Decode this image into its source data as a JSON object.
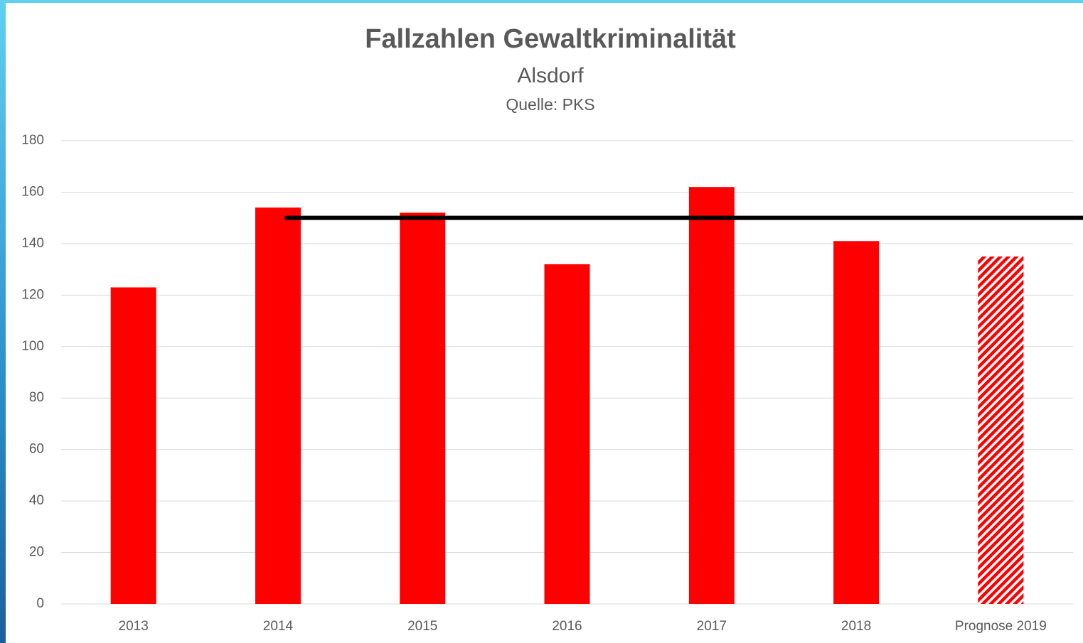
{
  "chart_data": {
    "type": "bar",
    "title": "Fallzahlen Gewaltkriminalität",
    "subtitle": "Alsdorf",
    "source": "Quelle: PKS",
    "categories": [
      "2013",
      "2014",
      "2015",
      "2016",
      "2017",
      "2018",
      "Prognose 2019"
    ],
    "values": [
      123,
      154,
      152,
      132,
      162,
      141,
      135
    ],
    "bar_styles": [
      "solid",
      "solid",
      "solid",
      "solid",
      "solid",
      "solid",
      "hatched"
    ],
    "color": "#ff0000",
    "reference_value": 150,
    "reference_color": "#000000",
    "ylim": [
      0,
      180
    ],
    "yticks": [
      0,
      20,
      40,
      60,
      80,
      100,
      120,
      140,
      160,
      180
    ],
    "grid": true
  }
}
